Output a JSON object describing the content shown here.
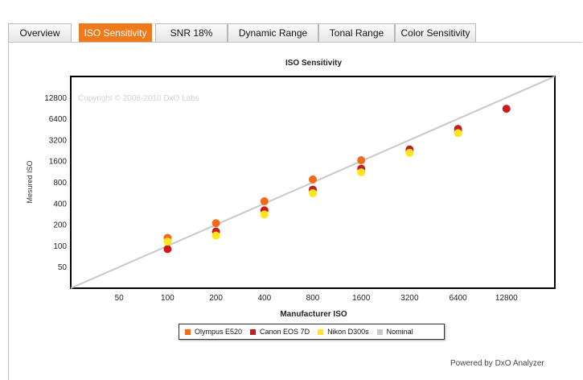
{
  "tabs": [
    {
      "label": "Overview",
      "active": false
    },
    {
      "label": "ISO Sensitivity",
      "active": true
    },
    {
      "label": "SNR 18%",
      "active": false
    },
    {
      "label": "Dynamic Range",
      "active": false
    },
    {
      "label": "Tonal Range",
      "active": false
    },
    {
      "label": "Color Sensitivity",
      "active": false
    }
  ],
  "footer": {
    "powered_by": "Powered by DxO Analyzer"
  },
  "chart_data": {
    "type": "scatter",
    "title": "ISO Sensitivity",
    "xlabel": "Manufacturer ISO",
    "ylabel": "Mesured ISO",
    "watermark": "Copyright © 2008-2010 DxO Labs",
    "x_scale": "log2",
    "y_scale": "log2",
    "xlim": [
      25,
      25600
    ],
    "ylim": [
      25,
      25600
    ],
    "x_ticks": [
      50,
      100,
      200,
      400,
      800,
      1600,
      3200,
      6400,
      12800
    ],
    "y_ticks": [
      50,
      100,
      200,
      400,
      800,
      1600,
      3200,
      6400,
      12800
    ],
    "grid": true,
    "legend_position": "bottom-center",
    "series": [
      {
        "name": "Olympus E520",
        "color": "#f26b1d",
        "kind": "points",
        "x": [
          100,
          200,
          400,
          800,
          1600,
          3200,
          6400
        ],
        "y": [
          130,
          210,
          430,
          880,
          1650,
          2200,
          4200
        ]
      },
      {
        "name": "Canon EOS 7D",
        "color": "#c81d1d",
        "kind": "points",
        "x": [
          100,
          200,
          400,
          800,
          1600,
          3200,
          6400,
          12800
        ],
        "y": [
          90,
          160,
          320,
          630,
          1250,
          2350,
          4600,
          8900
        ]
      },
      {
        "name": "Nikon D300s",
        "color": "#ffe51e",
        "kind": "points",
        "x": [
          100,
          200,
          400,
          800,
          1600,
          3200,
          6400
        ],
        "y": [
          115,
          140,
          280,
          560,
          1110,
          2100,
          4000
        ]
      },
      {
        "name": "Nominal",
        "color": "#c8c8c8",
        "kind": "line",
        "x": [
          25,
          25600
        ],
        "y": [
          25,
          25600
        ]
      }
    ]
  }
}
